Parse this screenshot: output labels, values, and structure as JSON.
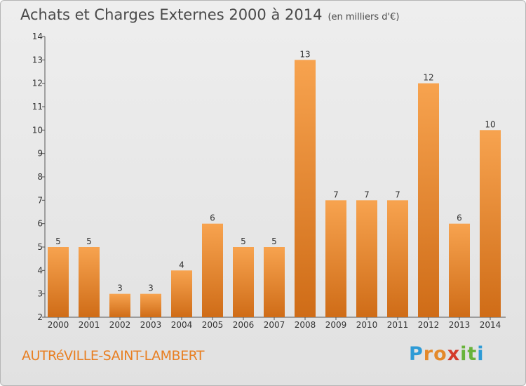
{
  "header": {
    "title": "Achats et Charges Externes 2000 à 2014",
    "subtitle": "(en milliers d'€)"
  },
  "footer": {
    "commune": "AUTRéVILLE-SAINT-LAMBERT",
    "logo_letters": [
      "P",
      "r",
      "o",
      "x",
      "i",
      "t",
      "i"
    ],
    "logo_colors": [
      "#2e9bd6",
      "#e4892a",
      "#e4892a",
      "#d43b2b",
      "#68b33a",
      "#68b33a",
      "#2e9bd6"
    ]
  },
  "chart_data": {
    "type": "bar",
    "title": "Achats et Charges Externes 2000 à 2014",
    "subtitle": "(en milliers d'€)",
    "categories": [
      "2000",
      "2001",
      "2002",
      "2003",
      "2004",
      "2005",
      "2006",
      "2007",
      "2008",
      "2009",
      "2010",
      "2011",
      "2012",
      "2013",
      "2014"
    ],
    "values": [
      5,
      5,
      3,
      3,
      4,
      6,
      5,
      5,
      13,
      7,
      7,
      7,
      12,
      6,
      10
    ],
    "ylim": [
      2,
      14
    ],
    "yticks": [
      2,
      3,
      4,
      5,
      6,
      7,
      8,
      9,
      10,
      11,
      12,
      13,
      14
    ],
    "grid": false,
    "bar_color_top": "#f7a34f",
    "bar_color_bottom": "#cf6c17"
  }
}
